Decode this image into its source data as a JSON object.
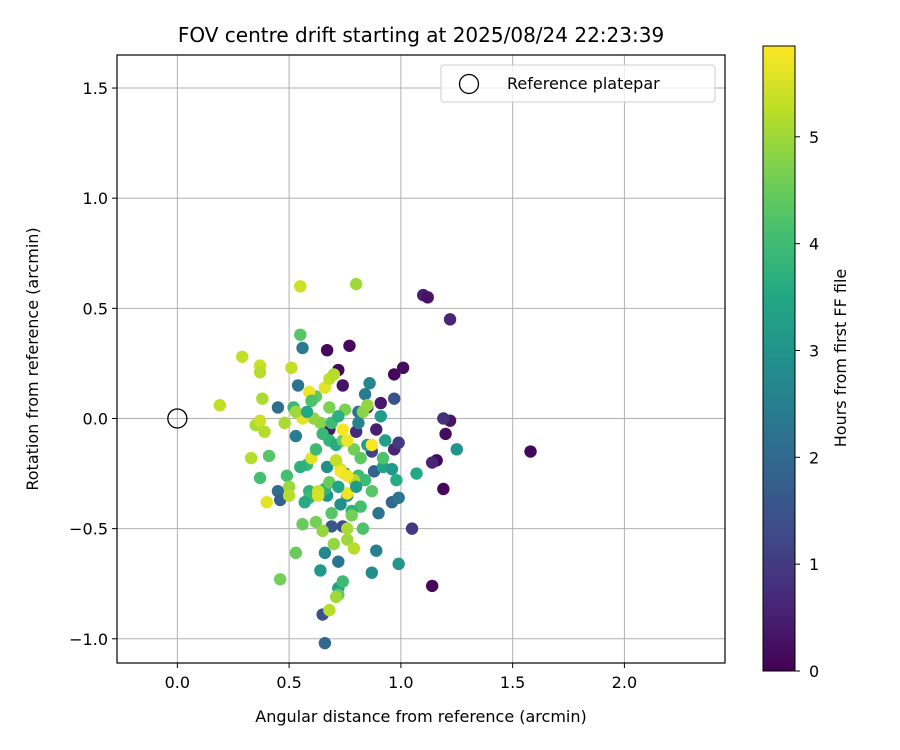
{
  "chart_data": {
    "type": "scatter",
    "title": "FOV centre drift starting at 2025/08/24 22:23:39",
    "xlabel": "Angular distance from reference (arcmin)",
    "ylabel": "Rotation from reference (arcmin)",
    "xlim": [
      -0.27,
      2.45
    ],
    "ylim": [
      -1.11,
      1.65
    ],
    "xticks": [
      0.0,
      0.5,
      1.0,
      1.5,
      2.0
    ],
    "xtick_labels": [
      "0.0",
      "0.5",
      "1.0",
      "1.5",
      "2.0"
    ],
    "yticks": [
      -1.0,
      -0.5,
      0.0,
      0.5,
      1.0,
      1.5
    ],
    "ytick_labels": [
      "−1.0",
      "−0.5",
      "0.0",
      "0.5",
      "1.0",
      "1.5"
    ],
    "grid": true,
    "legend": {
      "placement": "top-right",
      "entries": [
        "Reference platepar"
      ]
    },
    "reference_point": {
      "label": "Reference platepar",
      "x": 0.0,
      "y": 0.0
    },
    "colorbar": {
      "label": "Hours from first FF file",
      "colormap": "viridis",
      "range": [
        0,
        5.85
      ],
      "ticks": [
        0,
        1,
        2,
        3,
        4,
        5
      ],
      "tick_labels": [
        "0",
        "1",
        "2",
        "3",
        "4",
        "5"
      ]
    },
    "points": [
      {
        "x": 0.77,
        "y": 0.33,
        "t": 0.1
      },
      {
        "x": 0.67,
        "y": 0.31,
        "t": 0.1
      },
      {
        "x": 0.72,
        "y": 0.22,
        "t": 0.1
      },
      {
        "x": 0.97,
        "y": 0.2,
        "t": 0.1
      },
      {
        "x": 1.01,
        "y": 0.23,
        "t": 0.2
      },
      {
        "x": 1.1,
        "y": 0.56,
        "t": 0.5
      },
      {
        "x": 1.12,
        "y": 0.55,
        "t": 0.3
      },
      {
        "x": 1.22,
        "y": 0.45,
        "t": 0.6
      },
      {
        "x": 1.58,
        "y": -0.15,
        "t": 0.1
      },
      {
        "x": 1.14,
        "y": -0.76,
        "t": 0.1
      },
      {
        "x": 1.19,
        "y": -0.32,
        "t": 0.1
      },
      {
        "x": 1.16,
        "y": -0.19,
        "t": 0.1
      },
      {
        "x": 1.14,
        "y": -0.2,
        "t": 0.6
      },
      {
        "x": 1.2,
        "y": -0.07,
        "t": 0.2
      },
      {
        "x": 1.22,
        "y": -0.01,
        "t": 0.3
      },
      {
        "x": 1.19,
        "y": 0.0,
        "t": 0.8
      },
      {
        "x": 0.91,
        "y": 0.07,
        "t": 0.4
      },
      {
        "x": 0.97,
        "y": -0.14,
        "t": 0.6
      },
      {
        "x": 0.99,
        "y": -0.11,
        "t": 1.0
      },
      {
        "x": 1.05,
        "y": -0.5,
        "t": 1.0
      },
      {
        "x": 0.74,
        "y": 0.15,
        "t": 0.3
      },
      {
        "x": 0.8,
        "y": -0.06,
        "t": 0.7
      },
      {
        "x": 0.68,
        "y": -0.05,
        "t": 0.4
      },
      {
        "x": 0.89,
        "y": -0.05,
        "t": 0.5
      },
      {
        "x": 0.85,
        "y": 0.05,
        "t": 0.8
      },
      {
        "x": 0.87,
        "y": -0.15,
        "t": 1.2
      },
      {
        "x": 0.97,
        "y": 0.09,
        "t": 1.5
      },
      {
        "x": 0.74,
        "y": -0.49,
        "t": 1.3
      },
      {
        "x": 0.69,
        "y": -0.49,
        "t": 1.6
      },
      {
        "x": 0.65,
        "y": -0.89,
        "t": 1.4
      },
      {
        "x": 0.66,
        "y": -1.02,
        "t": 2.0
      },
      {
        "x": 0.72,
        "y": -0.65,
        "t": 2.3
      },
      {
        "x": 0.81,
        "y": 0.03,
        "t": 2.2
      },
      {
        "x": 0.54,
        "y": 0.15,
        "t": 2.2
      },
      {
        "x": 0.56,
        "y": 0.32,
        "t": 2.4
      },
      {
        "x": 0.45,
        "y": 0.05,
        "t": 2.1
      },
      {
        "x": 0.53,
        "y": -0.08,
        "t": 2.4
      },
      {
        "x": 0.45,
        "y": -0.33,
        "t": 2.1
      },
      {
        "x": 0.46,
        "y": -0.37,
        "t": 1.8
      },
      {
        "x": 0.88,
        "y": -0.24,
        "t": 1.8
      },
      {
        "x": 0.9,
        "y": -0.43,
        "t": 2.3
      },
      {
        "x": 0.96,
        "y": -0.38,
        "t": 2.0
      },
      {
        "x": 0.99,
        "y": -0.36,
        "t": 2.3
      },
      {
        "x": 0.84,
        "y": 0.11,
        "t": 2.4
      },
      {
        "x": 0.86,
        "y": 0.16,
        "t": 2.7
      },
      {
        "x": 0.89,
        "y": -0.6,
        "t": 2.5
      },
      {
        "x": 0.87,
        "y": -0.7,
        "t": 2.8
      },
      {
        "x": 0.99,
        "y": -0.66,
        "t": 3.1
      },
      {
        "x": 0.66,
        "y": -0.61,
        "t": 2.7
      },
      {
        "x": 0.64,
        "y": -0.69,
        "t": 3.1
      },
      {
        "x": 0.72,
        "y": -0.77,
        "t": 3.3
      },
      {
        "x": 0.73,
        "y": -0.39,
        "t": 2.9
      },
      {
        "x": 0.76,
        "y": -0.35,
        "t": 2.8
      },
      {
        "x": 0.67,
        "y": -0.35,
        "t": 3.0
      },
      {
        "x": 0.67,
        "y": -0.22,
        "t": 2.9
      },
      {
        "x": 0.75,
        "y": -0.25,
        "t": 2.8
      },
      {
        "x": 0.81,
        "y": -0.02,
        "t": 2.6
      },
      {
        "x": 0.91,
        "y": 0.01,
        "t": 3.2
      },
      {
        "x": 0.85,
        "y": -0.12,
        "t": 3.2
      },
      {
        "x": 0.93,
        "y": -0.1,
        "t": 3.3
      },
      {
        "x": 0.92,
        "y": -0.22,
        "t": 3.4
      },
      {
        "x": 0.96,
        "y": -0.23,
        "t": 3.1
      },
      {
        "x": 0.98,
        "y": -0.28,
        "t": 3.6
      },
      {
        "x": 1.07,
        "y": -0.25,
        "t": 3.5
      },
      {
        "x": 1.25,
        "y": -0.14,
        "t": 3.0
      },
      {
        "x": 0.68,
        "y": -0.1,
        "t": 3.8
      },
      {
        "x": 0.71,
        "y": -0.12,
        "t": 3.6
      },
      {
        "x": 0.66,
        "y": -0.32,
        "t": 3.8
      },
      {
        "x": 0.59,
        "y": -0.33,
        "t": 3.8
      },
      {
        "x": 0.59,
        "y": -0.36,
        "t": 4.0
      },
      {
        "x": 0.58,
        "y": -0.21,
        "t": 3.9
      },
      {
        "x": 0.57,
        "y": -0.38,
        "t": 3.6
      },
      {
        "x": 0.52,
        "y": 0.05,
        "t": 3.9
      },
      {
        "x": 0.55,
        "y": -0.22,
        "t": 3.7
      },
      {
        "x": 0.49,
        "y": -0.26,
        "t": 4.1
      },
      {
        "x": 0.81,
        "y": -0.26,
        "t": 4.0
      },
      {
        "x": 0.84,
        "y": -0.28,
        "t": 4.0
      },
      {
        "x": 0.82,
        "y": -0.4,
        "t": 4.1
      },
      {
        "x": 0.78,
        "y": -0.42,
        "t": 3.8
      },
      {
        "x": 0.83,
        "y": -0.5,
        "t": 4.2
      },
      {
        "x": 0.74,
        "y": -0.74,
        "t": 4.0
      },
      {
        "x": 0.72,
        "y": -0.8,
        "t": 4.4
      },
      {
        "x": 0.55,
        "y": 0.38,
        "t": 4.3
      },
      {
        "x": 0.37,
        "y": -0.27,
        "t": 4.1
      },
      {
        "x": 0.41,
        "y": -0.17,
        "t": 4.3
      },
      {
        "x": 0.46,
        "y": -0.73,
        "t": 4.6
      },
      {
        "x": 0.53,
        "y": -0.61,
        "t": 4.5
      },
      {
        "x": 0.56,
        "y": -0.48,
        "t": 4.5
      },
      {
        "x": 0.62,
        "y": -0.47,
        "t": 4.6
      },
      {
        "x": 0.68,
        "y": -0.29,
        "t": 4.5
      },
      {
        "x": 0.74,
        "y": -0.1,
        "t": 4.5
      },
      {
        "x": 0.79,
        "y": -0.14,
        "t": 4.6
      },
      {
        "x": 0.82,
        "y": -0.18,
        "t": 4.4
      },
      {
        "x": 0.62,
        "y": 0.1,
        "t": 4.4
      },
      {
        "x": 0.68,
        "y": 0.05,
        "t": 4.7
      },
      {
        "x": 0.75,
        "y": 0.04,
        "t": 4.7
      },
      {
        "x": 0.83,
        "y": 0.03,
        "t": 4.8
      },
      {
        "x": 0.85,
        "y": 0.06,
        "t": 4.9
      },
      {
        "x": 0.64,
        "y": -0.02,
        "t": 4.8
      },
      {
        "x": 0.61,
        "y": 0.0,
        "t": 4.9
      },
      {
        "x": 0.65,
        "y": -0.51,
        "t": 4.9
      },
      {
        "x": 0.7,
        "y": -0.57,
        "t": 4.9
      },
      {
        "x": 0.76,
        "y": -0.55,
        "t": 5.0
      },
      {
        "x": 0.76,
        "y": -0.5,
        "t": 5.1
      },
      {
        "x": 0.79,
        "y": -0.59,
        "t": 5.2
      },
      {
        "x": 0.71,
        "y": -0.81,
        "t": 5.0
      },
      {
        "x": 0.68,
        "y": -0.87,
        "t": 5.2
      },
      {
        "x": 0.8,
        "y": 0.61,
        "t": 5.0
      },
      {
        "x": 0.55,
        "y": 0.6,
        "t": 5.4
      },
      {
        "x": 0.29,
        "y": 0.28,
        "t": 5.3
      },
      {
        "x": 0.37,
        "y": 0.24,
        "t": 5.4
      },
      {
        "x": 0.37,
        "y": 0.21,
        "t": 5.2
      },
      {
        "x": 0.51,
        "y": 0.23,
        "t": 5.3
      },
      {
        "x": 0.38,
        "y": 0.09,
        "t": 5.1
      },
      {
        "x": 0.19,
        "y": 0.06,
        "t": 5.3
      },
      {
        "x": 0.35,
        "y": -0.03,
        "t": 5.1
      },
      {
        "x": 0.37,
        "y": -0.01,
        "t": 5.4
      },
      {
        "x": 0.39,
        "y": -0.06,
        "t": 5.2
      },
      {
        "x": 0.48,
        "y": -0.02,
        "t": 5.1
      },
      {
        "x": 0.33,
        "y": -0.18,
        "t": 5.2
      },
      {
        "x": 0.4,
        "y": -0.38,
        "t": 5.6
      },
      {
        "x": 0.5,
        "y": -0.31,
        "t": 5.0
      },
      {
        "x": 0.5,
        "y": -0.35,
        "t": 5.2
      },
      {
        "x": 0.63,
        "y": -0.33,
        "t": 5.4
      },
      {
        "x": 0.73,
        "y": -0.23,
        "t": 5.5
      },
      {
        "x": 0.76,
        "y": -0.34,
        "t": 5.7
      },
      {
        "x": 0.79,
        "y": -0.28,
        "t": 5.2
      },
      {
        "x": 0.56,
        "y": 0.0,
        "t": 5.6
      },
      {
        "x": 0.59,
        "y": 0.12,
        "t": 5.7
      },
      {
        "x": 0.66,
        "y": 0.14,
        "t": 5.6
      },
      {
        "x": 0.68,
        "y": 0.18,
        "t": 5.3
      },
      {
        "x": 0.7,
        "y": 0.2,
        "t": 5.2
      },
      {
        "x": 0.53,
        "y": 0.03,
        "t": 5.0
      },
      {
        "x": 0.74,
        "y": -0.05,
        "t": 5.8
      },
      {
        "x": 0.76,
        "y": -0.1,
        "t": 5.7
      },
      {
        "x": 0.87,
        "y": -0.12,
        "t": 5.8
      },
      {
        "x": 0.6,
        "y": -0.18,
        "t": 5.6
      },
      {
        "x": 0.71,
        "y": -0.19,
        "t": 5.3
      },
      {
        "x": 0.73,
        "y": -0.24,
        "t": 5.8
      },
      {
        "x": 0.76,
        "y": -0.26,
        "t": 5.7
      },
      {
        "x": 0.63,
        "y": -0.35,
        "t": 5.5
      },
      {
        "x": 0.78,
        "y": -0.44,
        "t": 4.6
      },
      {
        "x": 0.69,
        "y": -0.43,
        "t": 4.3
      },
      {
        "x": 0.87,
        "y": -0.33,
        "t": 4.3
      },
      {
        "x": 0.92,
        "y": -0.18,
        "t": 4.2
      },
      {
        "x": 0.62,
        "y": -0.14,
        "t": 4.0
      },
      {
        "x": 0.65,
        "y": -0.07,
        "t": 3.9
      },
      {
        "x": 0.69,
        "y": -0.02,
        "t": 4.0
      },
      {
        "x": 0.72,
        "y": 0.01,
        "t": 3.7
      },
      {
        "x": 0.6,
        "y": 0.08,
        "t": 4.2
      },
      {
        "x": 0.58,
        "y": 0.03,
        "t": 3.5
      },
      {
        "x": 0.72,
        "y": -0.31,
        "t": 3.4
      },
      {
        "x": 0.8,
        "y": -0.31,
        "t": 3.2
      }
    ]
  }
}
